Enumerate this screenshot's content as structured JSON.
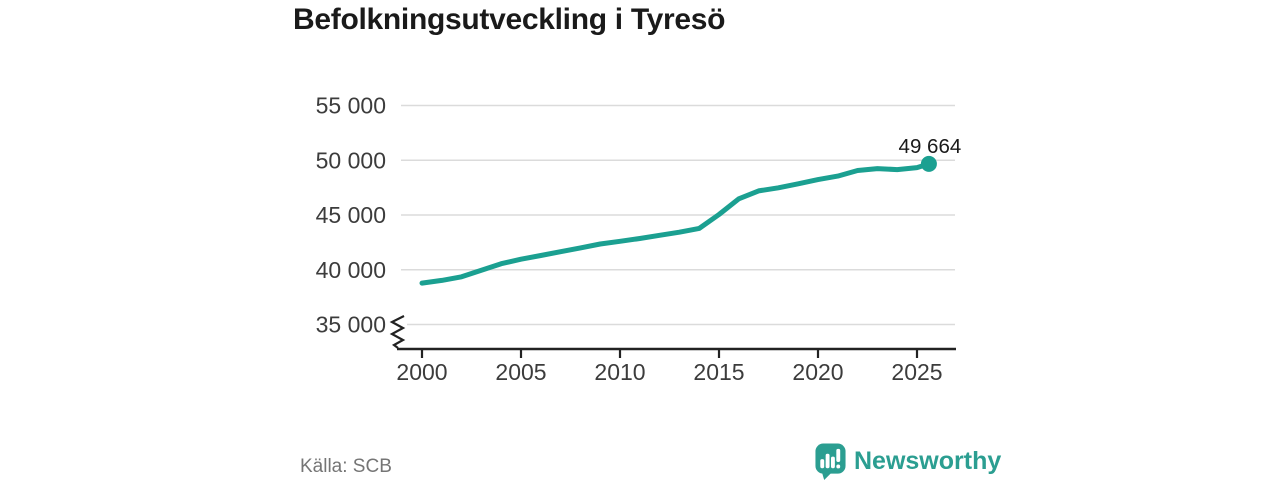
{
  "title": "Befolkningsutveckling i Tyresö",
  "source": "Källa: SCB",
  "branding": {
    "name": "Newsworthy",
    "icon": "newsworthy-bubble-chart-icon",
    "color": "#2B9E91"
  },
  "colors": {
    "line": "#1BA091",
    "grid": "#DBDBDB",
    "axis": "#222222",
    "tick_label": "#3C3C3C",
    "annotation": "#1A1A1A",
    "source_text": "#757575",
    "background": "#FFFFFF"
  },
  "chart_data": {
    "type": "line",
    "title": "Befolkningsutveckling i Tyresö",
    "xlabel": "",
    "ylabel": "",
    "source": "Källa: SCB",
    "grid": "horizontal",
    "legend": "none",
    "axis_break": true,
    "ylim": [
      35000,
      55000
    ],
    "xlim": [
      2000,
      2027
    ],
    "x_ticks": [
      2000,
      2005,
      2010,
      2015,
      2020,
      2025
    ],
    "x_tick_labels": [
      "2000",
      "2005",
      "2010",
      "2015",
      "2020",
      "2025"
    ],
    "y_ticks": [
      35000,
      40000,
      45000,
      50000,
      55000
    ],
    "y_tick_labels": [
      "35 000",
      "40 000",
      "45 000",
      "50 000",
      "55 000"
    ],
    "x": [
      2000,
      2001,
      2002,
      2003,
      2004,
      2005,
      2006,
      2007,
      2008,
      2009,
      2010,
      2011,
      2012,
      2013,
      2014,
      2015,
      2016,
      2017,
      2018,
      2019,
      2020,
      2021,
      2022,
      2023,
      2024,
      2025,
      2025.6
    ],
    "y": [
      38780,
      39030,
      39360,
      39950,
      40550,
      40960,
      41300,
      41650,
      42000,
      42350,
      42600,
      42850,
      43150,
      43430,
      43780,
      45050,
      46480,
      47200,
      47480,
      47850,
      48230,
      48550,
      49060,
      49240,
      49150,
      49330,
      49664
    ],
    "end_label": "49 664",
    "end_value": 49664
  }
}
